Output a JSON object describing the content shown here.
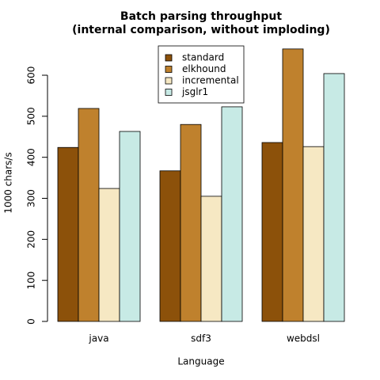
{
  "chart_data": {
    "type": "bar",
    "title": "Batch parsing throughput",
    "subtitle": "(internal comparison, without imploding)",
    "x_label": "Language",
    "y_label": "1000 chars/s",
    "categories": [
      "java",
      "sdf3",
      "webdsl"
    ],
    "series": [
      {
        "name": "standard",
        "color": "#8c510a",
        "values": [
          424,
          367,
          436
        ]
      },
      {
        "name": "elkhound",
        "color": "#bf812d",
        "values": [
          519,
          480,
          664
        ]
      },
      {
        "name": "incremental",
        "color": "#f6e8c3",
        "values": [
          324,
          305,
          426
        ]
      },
      {
        "name": "jsglr1",
        "color": "#c7eae5",
        "values": [
          463,
          523,
          604
        ]
      }
    ],
    "ylim": [
      0,
      690
    ],
    "yticks": [
      0,
      100,
      200,
      300,
      400,
      500,
      600
    ],
    "legend": "top"
  }
}
